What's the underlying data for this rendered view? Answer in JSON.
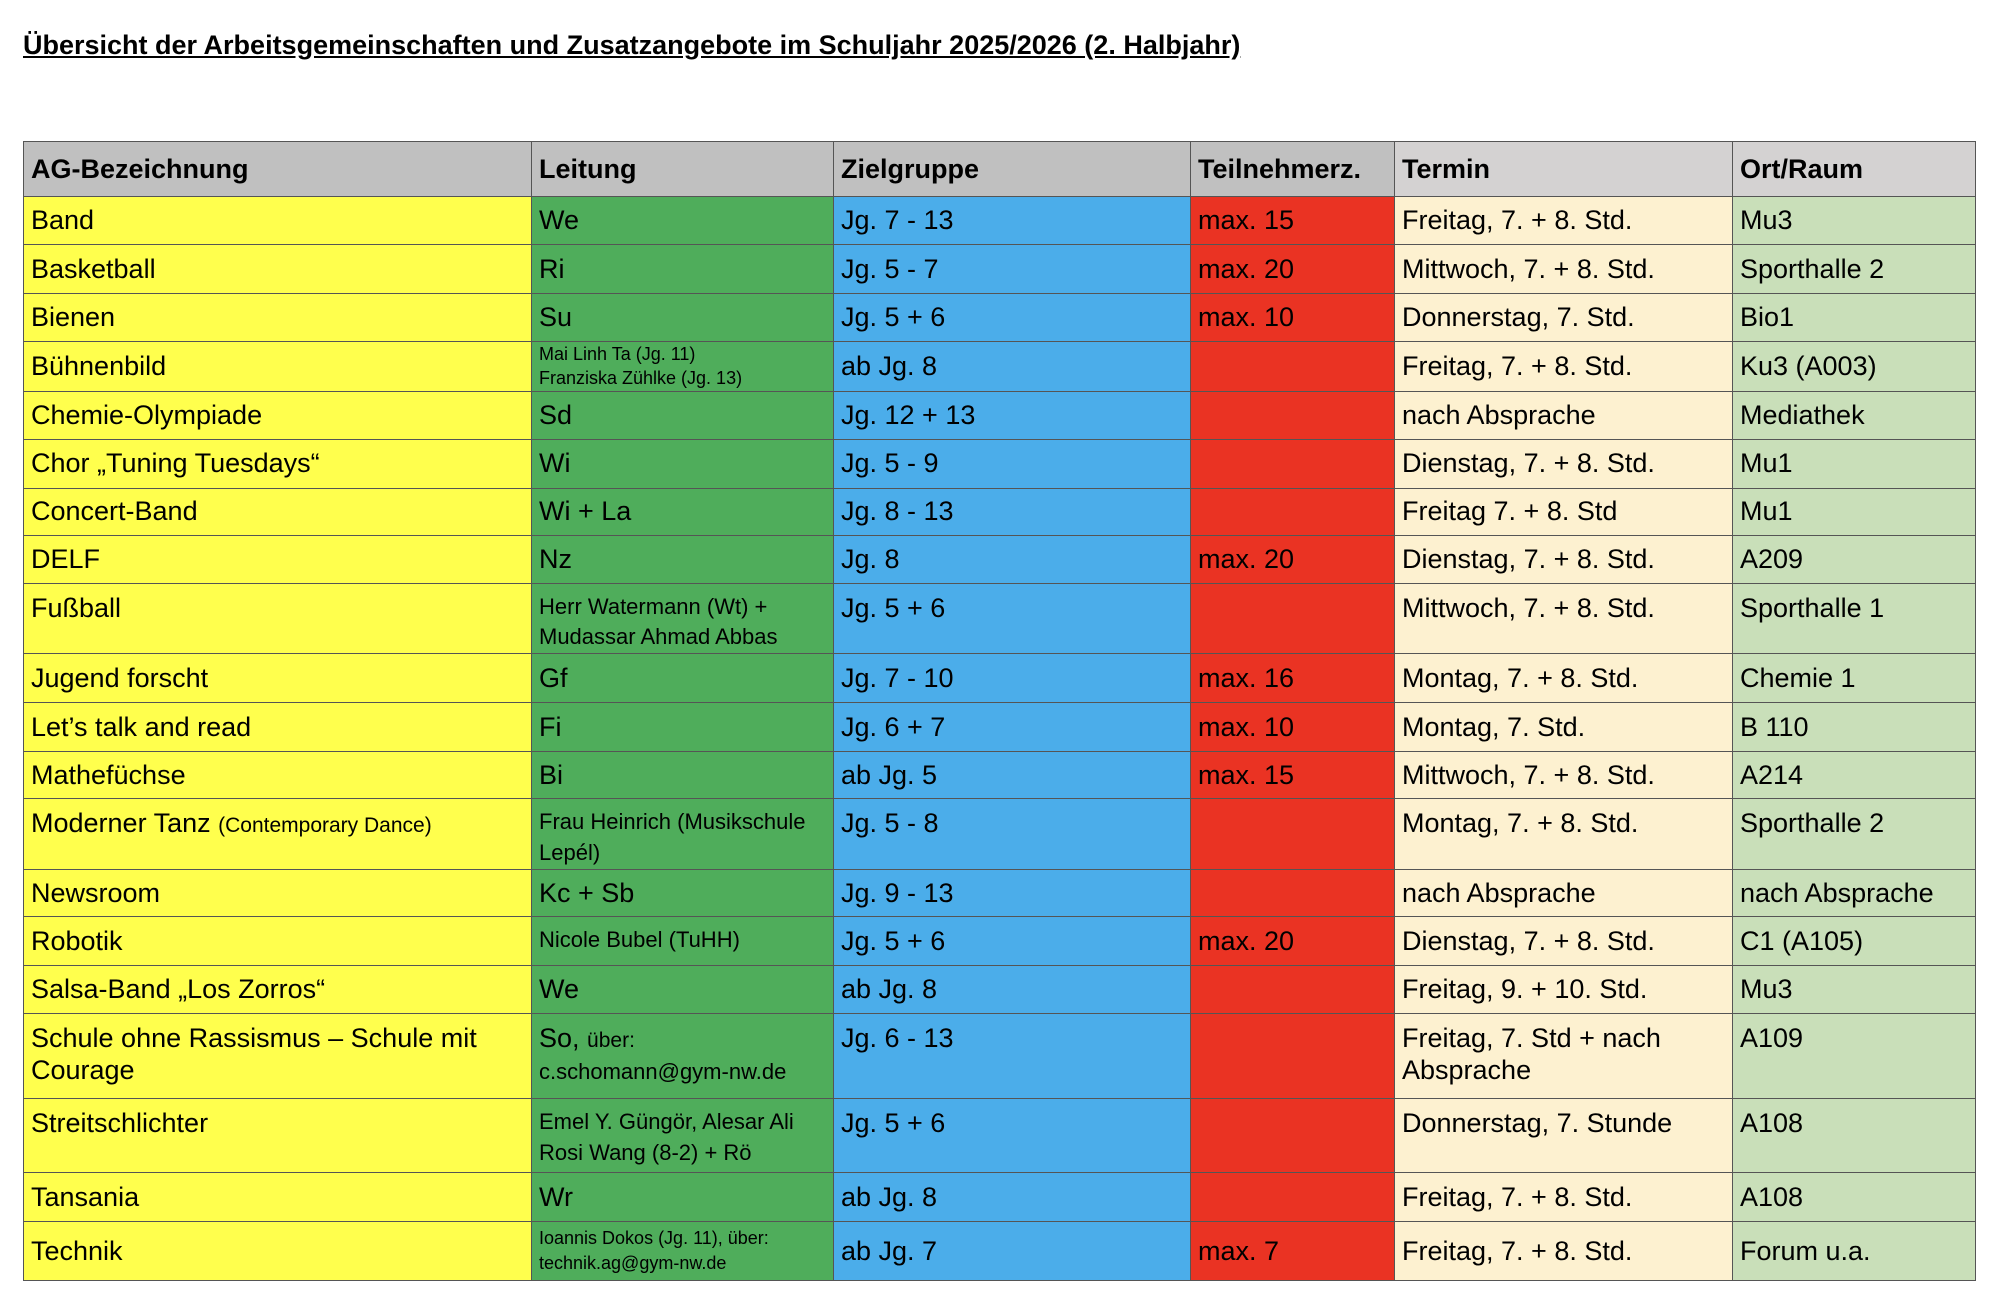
{
  "title": "Übersicht der Arbeitsgemeinschaften und Zusatzangebote im Schuljahr 2025/2026 (2. Halbjahr)",
  "columns": [
    "AG-Bezeichnung",
    "Leitung",
    "Zielgruppe",
    "Teilnehmerz.",
    "Termin",
    "Ort/Raum"
  ],
  "colors": {
    "ag": "#ffff4d",
    "leitung": "#4fad5b",
    "zielgruppe": "#4badea",
    "teilnehmer": "#ea3323",
    "termin": "#fdf1d0",
    "ort": "#c9dfb9",
    "header": "#c0c0c0"
  },
  "rows": [
    {
      "ag": "Band",
      "leitung": [
        "We"
      ],
      "ziel": "Jg. 7 - 13",
      "teil": "max. 15",
      "termin": "Freitag, 7. + 8. Std.",
      "ort": "Mu3"
    },
    {
      "ag": "Basketball",
      "leitung": [
        "Ri"
      ],
      "ziel": "Jg. 5 - 7",
      "teil": "max. 20",
      "termin": "Mittwoch, 7. + 8. Std.",
      "ort": "Sporthalle 2"
    },
    {
      "ag": "Bienen",
      "leitung": [
        "Su"
      ],
      "ziel": "Jg. 5 + 6",
      "teil": "max. 10",
      "termin": "Donnerstag, 7. Std.",
      "ort": "Bio1"
    },
    {
      "ag": "Bühnenbild",
      "leitung": [
        "Mai Linh Ta (Jg. 11)",
        "Franziska Zühlke (Jg. 13)"
      ],
      "ziel": "ab Jg. 8",
      "teil": "",
      "termin": "Freitag, 7. + 8. Std.",
      "ort": "Ku3 (A003)"
    },
    {
      "ag": "Chemie-Olympiade",
      "leitung": [
        "Sd"
      ],
      "ziel": "Jg. 12 + 13",
      "teil": "",
      "termin": "nach Absprache",
      "ort": "Mediathek"
    },
    {
      "ag": "Chor „Tuning Tuesdays“",
      "leitung": [
        "Wi"
      ],
      "ziel": "Jg. 5 - 9",
      "teil": "",
      "termin": "Dienstag, 7. + 8. Std.",
      "ort": "Mu1"
    },
    {
      "ag": "Concert-Band",
      "leitung": [
        "Wi + La"
      ],
      "ziel": "Jg. 8 - 13",
      "teil": "",
      "termin": "Freitag 7. + 8. Std",
      "ort": "Mu1"
    },
    {
      "ag": "DELF",
      "leitung": [
        "Nz"
      ],
      "ziel": "Jg. 8",
      "teil": "max. 20",
      "termin": "Dienstag, 7. + 8. Std.",
      "ort": "A209"
    },
    {
      "ag": "Fußball",
      "leitung": [
        "Herr Watermann (Wt) +",
        "Mudassar Ahmad Abbas"
      ],
      "ziel": "Jg. 5 + 6",
      "teil": "",
      "termin": "Mittwoch, 7. + 8. Std.",
      "ort": "Sporthalle 1"
    },
    {
      "ag": "Jugend forscht",
      "leitung": [
        "Gf"
      ],
      "ziel": "Jg. 7 - 10",
      "teil": "max. 16",
      "termin": "Montag, 7. + 8. Std.",
      "ort": "Chemie 1"
    },
    {
      "ag": "Let’s talk and read",
      "leitung": [
        "Fi"
      ],
      "ziel": "Jg. 6 + 7",
      "teil": "max. 10",
      "termin": "Montag, 7. Std.",
      "ort": "B 110"
    },
    {
      "ag": "Mathefüchse",
      "leitung": [
        "Bi"
      ],
      "ziel": "ab Jg. 5",
      "teil": "max. 15",
      "termin": "Mittwoch, 7. + 8. Std.",
      "ort": "A214"
    },
    {
      "ag": "Moderner Tanz",
      "ag_note": "(Contemporary Dance)",
      "leitung": [
        "Frau Heinrich (Musikschule",
        "Lepél)"
      ],
      "ziel": "Jg. 5 - 8",
      "teil": "",
      "termin": "Montag, 7. + 8. Std.",
      "ort": "Sporthalle 2"
    },
    {
      "ag": "Newsroom",
      "leitung": [
        "Kc + Sb"
      ],
      "ziel": "Jg. 9 - 13",
      "teil": "",
      "termin": "nach Absprache",
      "ort": "nach Absprache"
    },
    {
      "ag": "Robotik",
      "leitung": [
        "Nicole Bubel (TuHH)"
      ],
      "ziel": "Jg. 5 + 6",
      "teil": "max. 20",
      "termin": "Dienstag, 7. + 8. Std.",
      "ort": "C1 (A105)"
    },
    {
      "ag": "Salsa-Band „Los Zorros“",
      "leitung": [
        "We"
      ],
      "ziel": "ab Jg. 8",
      "teil": "",
      "termin": "Freitag, 9. + 10. Std.",
      "ort": "Mu3"
    },
    {
      "ag": "Schule ohne Rassismus – Schule mit Courage",
      "leitung": [
        "So,",
        "über:",
        "c.schomann@gym-nw.de"
      ],
      "ziel": "Jg. 6 - 13",
      "teil": "",
      "termin": "Freitag, 7. Std + nach Absprache",
      "ort": "A109"
    },
    {
      "ag": "Streitschlichter",
      "leitung": [
        "Emel Y. Güngör, Alesar Ali",
        "Rosi Wang (8-2) + Rö"
      ],
      "ziel": "Jg. 5 + 6",
      "teil": "",
      "termin": "Donnerstag, 7. Stunde",
      "ort": "A108"
    },
    {
      "ag": "Tansania",
      "leitung": [
        "Wr"
      ],
      "ziel": "ab Jg. 8",
      "teil": "",
      "termin": "Freitag, 7. + 8. Std.",
      "ort": "A108"
    },
    {
      "ag": "Technik",
      "leitung": [
        "Ioannis Dokos (Jg. 11), über:",
        "technik.ag@gym-nw.de"
      ],
      "ziel": "ab Jg. 7",
      "teil": "max. 7",
      "termin": "Freitag, 7. + 8. Std.",
      "ort": "Forum u.a."
    }
  ]
}
